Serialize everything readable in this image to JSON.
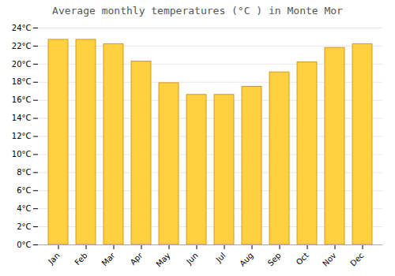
{
  "chart_data": {
    "type": "bar",
    "title": "Average monthly temperatures (°C ) in Monte Mor",
    "categories": [
      "Jan",
      "Feb",
      "Mar",
      "Apr",
      "May",
      "Jun",
      "Jul",
      "Aug",
      "Sep",
      "Oct",
      "Nov",
      "Dec"
    ],
    "values": [
      22.7,
      22.7,
      22.2,
      20.3,
      17.9,
      16.6,
      16.6,
      17.5,
      19.1,
      20.2,
      21.8,
      22.2
    ],
    "color": "#FFD040",
    "ylim": [
      0,
      24
    ],
    "yticks": [
      {
        "value": 0,
        "label": "0°C"
      },
      {
        "value": 2,
        "label": "2°C"
      },
      {
        "value": 4,
        "label": "4°C"
      },
      {
        "value": 6,
        "label": "6°C"
      },
      {
        "value": 8,
        "label": "8°C"
      },
      {
        "value": 10,
        "label": "10°C"
      },
      {
        "value": 12,
        "label": "12°C"
      },
      {
        "value": 14,
        "label": "14°C"
      },
      {
        "value": 16,
        "label": "16°C"
      },
      {
        "value": 18,
        "label": "18°C"
      },
      {
        "value": 20,
        "label": "20°C"
      },
      {
        "value": 22,
        "label": "22°C"
      },
      {
        "value": 24,
        "label": "24°C"
      }
    ],
    "grid": true
  }
}
